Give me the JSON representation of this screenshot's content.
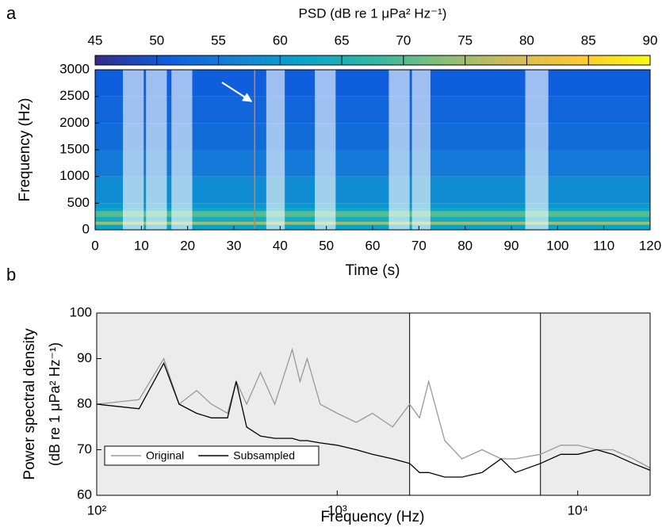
{
  "chart_data": [
    {
      "type": "heatmap",
      "panel_label": "a",
      "title": "PSD (dB re 1 μPa² Hz⁻¹)",
      "xlabel": "Time (s)",
      "ylabel": "Frequency (Hz)",
      "xlim": [
        0,
        120
      ],
      "xticks": [
        0,
        10,
        20,
        30,
        40,
        50,
        60,
        70,
        80,
        90,
        100,
        110,
        120
      ],
      "ylim": [
        0,
        3000
      ],
      "yticks": [
        0,
        500,
        1000,
        1500,
        2000,
        2500,
        3000
      ],
      "y_bins": [
        0,
        100,
        150,
        250,
        350,
        400,
        500,
        1000,
        1500,
        2000,
        2500,
        3000
      ],
      "values": [
        62,
        75,
        64,
        70,
        62,
        60,
        58,
        55,
        53,
        52,
        51
      ],
      "clim": [
        45,
        90
      ],
      "cticks": [
        45,
        50,
        55,
        60,
        65,
        70,
        75,
        80,
        85,
        90
      ],
      "colormap": [
        "#352a87",
        "#0f5cdd",
        "#1481d6",
        "#06a4ca",
        "#2eb7a4",
        "#87bf77",
        "#d1bb59",
        "#fec832",
        "#f9fb0e"
      ],
      "highlights": [
        [
          6,
          10.5
        ],
        [
          11,
          15.5
        ],
        [
          16.5,
          21
        ],
        [
          37,
          41
        ],
        [
          47.5,
          52
        ],
        [
          63.5,
          68
        ],
        [
          68.5,
          72.5
        ],
        [
          93,
          98
        ]
      ],
      "event_line": 34.5,
      "event_color": "#e07b39"
    },
    {
      "type": "line",
      "panel_label": "b",
      "xlabel": "Frequency (Hz)",
      "ylabel": [
        "Power spectral density",
        "(dB re 1 μPa² Hz⁻¹)"
      ],
      "xscale": "log",
      "xlim": [
        100,
        20000
      ],
      "xticks": [
        {
          "value": 100,
          "label": "10²"
        },
        {
          "value": 1000,
          "label": "10³"
        },
        {
          "value": 10000,
          "label": "10⁴"
        }
      ],
      "ylim": [
        60,
        100
      ],
      "yticks": [
        60,
        70,
        80,
        90,
        100
      ],
      "shaded": [
        [
          100,
          2000
        ],
        [
          7000,
          20000
        ]
      ],
      "legend": "lower left",
      "x": [
        100,
        150,
        190,
        220,
        260,
        300,
        350,
        380,
        420,
        480,
        550,
        650,
        700,
        750,
        850,
        1000,
        1200,
        1400,
        1700,
        2000,
        2200,
        2400,
        2800,
        3300,
        4000,
        4800,
        5500,
        7000,
        8500,
        10000,
        12000,
        14000,
        17000,
        20000
      ],
      "series": [
        {
          "name": "Original",
          "color": "#999999",
          "values": [
            80,
            81,
            90,
            80,
            83,
            80,
            78,
            85,
            80,
            87,
            80,
            92,
            85,
            90,
            80,
            78,
            76,
            78,
            75,
            80,
            77,
            85,
            72,
            68,
            70,
            68,
            68,
            69,
            71,
            71,
            70,
            70,
            68,
            66
          ]
        },
        {
          "name": "Subsampled",
          "color": "#000000",
          "values": [
            80,
            79,
            89,
            80,
            78,
            77,
            77,
            85,
            75,
            73,
            72.5,
            72.5,
            72,
            72,
            71.5,
            71,
            70,
            69,
            68,
            67,
            65,
            65,
            64,
            64,
            65,
            68,
            65,
            67,
            69,
            69,
            70,
            69,
            67,
            65.5
          ]
        }
      ]
    }
  ]
}
